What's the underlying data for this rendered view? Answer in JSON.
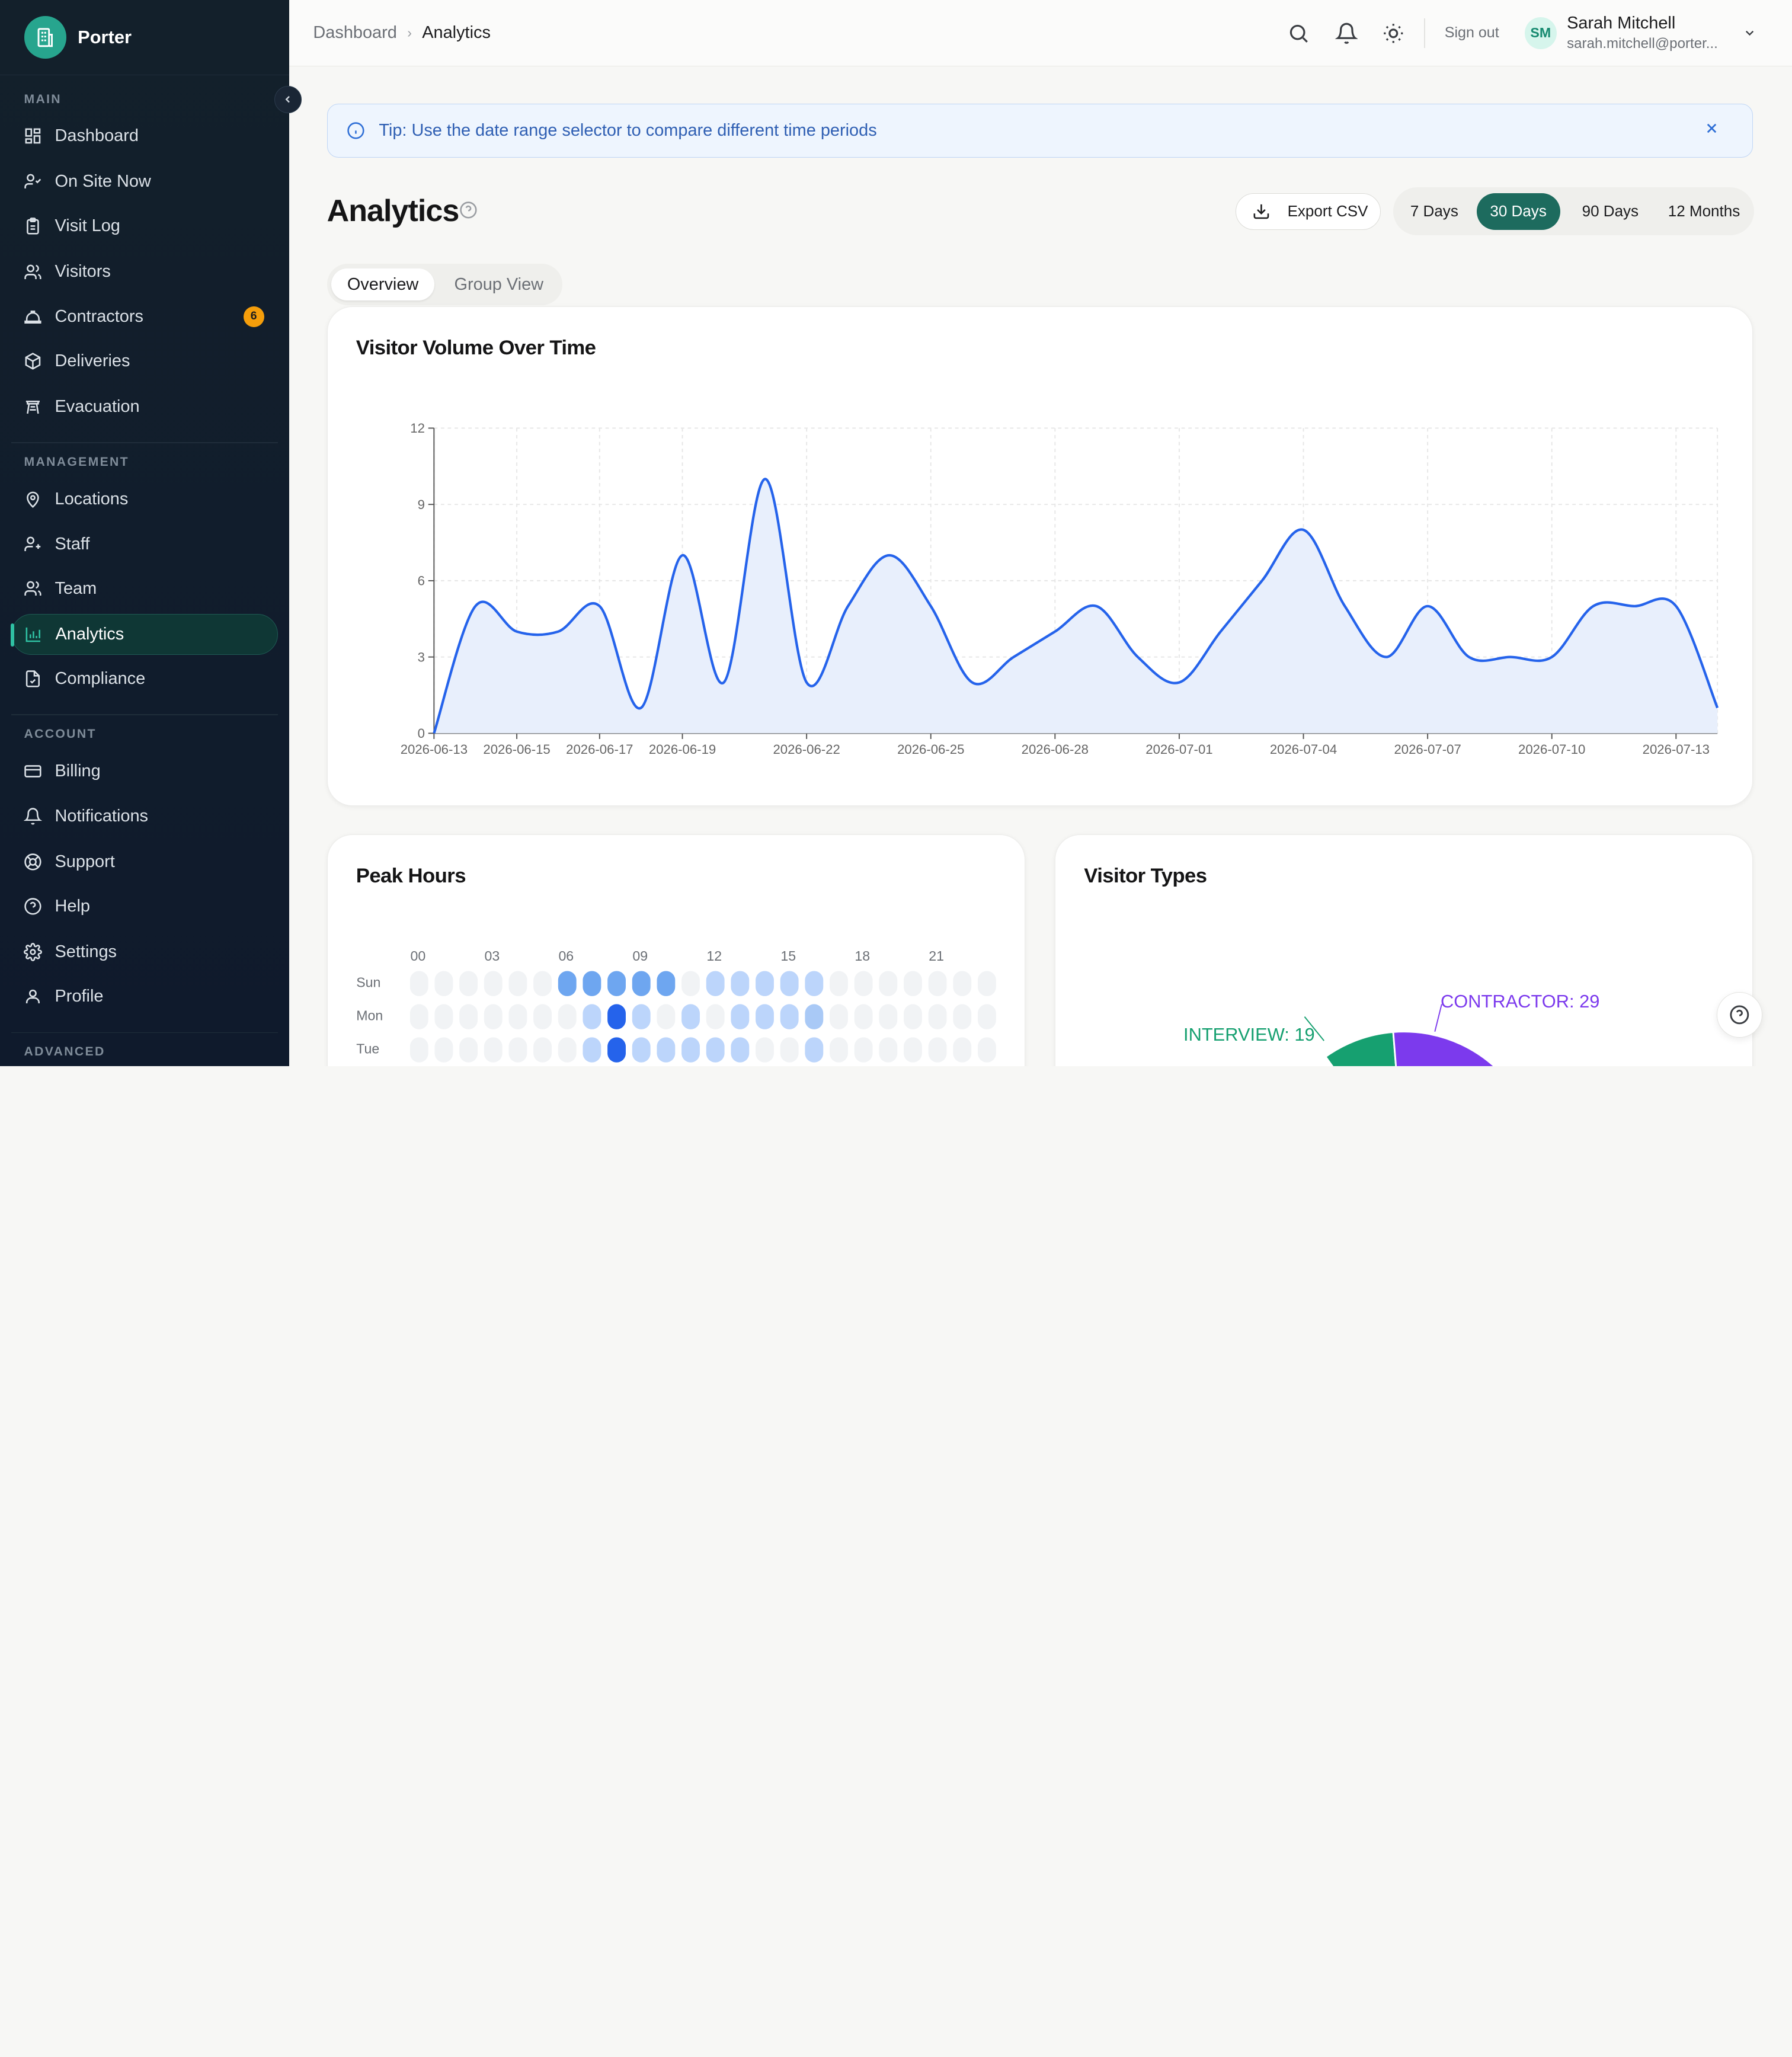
{
  "brand": {
    "name": "Porter"
  },
  "sidebar": {
    "sections": {
      "main": "MAIN",
      "management": "MANAGEMENT",
      "account": "ACCOUNT",
      "advanced": "ADVANCED"
    },
    "main": [
      {
        "label": "Dashboard",
        "icon": "dashboard-icon"
      },
      {
        "label": "On Site Now",
        "icon": "user-check-icon"
      },
      {
        "label": "Visit Log",
        "icon": "clipboard-icon"
      },
      {
        "label": "Visitors",
        "icon": "users-icon"
      },
      {
        "label": "Contractors",
        "icon": "hard-hat-icon",
        "badge": "6"
      },
      {
        "label": "Deliveries",
        "icon": "package-icon"
      },
      {
        "label": "Evacuation",
        "icon": "evacuation-icon"
      }
    ],
    "management": [
      {
        "label": "Locations",
        "icon": "map-pin-icon"
      },
      {
        "label": "Staff",
        "icon": "user-plus-icon"
      },
      {
        "label": "Team",
        "icon": "team-icon"
      },
      {
        "label": "Analytics",
        "icon": "bar-chart-icon",
        "active": true
      },
      {
        "label": "Compliance",
        "icon": "file-check-icon"
      }
    ],
    "account": [
      {
        "label": "Billing",
        "icon": "credit-card-icon"
      },
      {
        "label": "Notifications",
        "icon": "bell-icon"
      },
      {
        "label": "Support",
        "icon": "life-buoy-icon"
      },
      {
        "label": "Help",
        "icon": "help-circle-icon"
      },
      {
        "label": "Settings",
        "icon": "gear-icon"
      },
      {
        "label": "Profile",
        "icon": "user-icon"
      }
    ]
  },
  "topbar": {
    "breadcrumb": [
      "Dashboard",
      "Analytics"
    ],
    "signout": "Sign out",
    "user": {
      "initials": "SM",
      "name": "Sarah Mitchell",
      "email": "sarah.mitchell@porter..."
    }
  },
  "tip": {
    "text": "Tip: Use the date range selector to compare different time periods"
  },
  "page": {
    "title": "Analytics",
    "export_label": "Export CSV",
    "ranges": [
      "7 Days",
      "30 Days",
      "90 Days",
      "12 Months"
    ],
    "selected_range": "30 Days",
    "tabs": [
      "Overview",
      "Group View"
    ],
    "selected_tab": "Overview"
  },
  "cards": {
    "volume": "Visitor Volume Over Time",
    "peak": "Peak Hours",
    "types": "Visitor Types"
  },
  "chart_data": [
    {
      "type": "area",
      "title": "Visitor Volume Over Time",
      "ylim": [
        0,
        12
      ],
      "yticks": [
        0,
        3,
        6,
        9,
        12
      ],
      "xticks": [
        "2026-06-13",
        "2026-06-15",
        "2026-06-17",
        "2026-06-19",
        "2026-06-22",
        "2026-06-25",
        "2026-06-28",
        "2026-07-01",
        "2026-07-04",
        "2026-07-07",
        "2026-07-10",
        "2026-07-13"
      ],
      "x": [
        "2026-06-13",
        "2026-06-14",
        "2026-06-15",
        "2026-06-16",
        "2026-06-17",
        "2026-06-18",
        "2026-06-19",
        "2026-06-20",
        "2026-06-21",
        "2026-06-22",
        "2026-06-23",
        "2026-06-24",
        "2026-06-25",
        "2026-06-26",
        "2026-06-27",
        "2026-06-28",
        "2026-06-29",
        "2026-06-30",
        "2026-07-01",
        "2026-07-02",
        "2026-07-03",
        "2026-07-04",
        "2026-07-05",
        "2026-07-06",
        "2026-07-07",
        "2026-07-08",
        "2026-07-09",
        "2026-07-10",
        "2026-07-11",
        "2026-07-12",
        "2026-07-13",
        "2026-07-14"
      ],
      "values": [
        0,
        5,
        4,
        4,
        5,
        1,
        7,
        2,
        10,
        2,
        5,
        7,
        5,
        2,
        3,
        4,
        5,
        3,
        2,
        4,
        6,
        8,
        5,
        3,
        5,
        3,
        3,
        3,
        5,
        5,
        5,
        1
      ],
      "color": "#2563eb",
      "fill": "#e8effc",
      "grid": true
    },
    {
      "type": "heatmap",
      "title": "Peak Hours",
      "xticks": [
        "00",
        "03",
        "06",
        "09",
        "12",
        "15",
        "18",
        "21"
      ],
      "rows": [
        "Sun",
        "Mon",
        "Tue"
      ],
      "values": [
        [
          0,
          0,
          0,
          0,
          0,
          0,
          3,
          3,
          3,
          3,
          3,
          0,
          2,
          2,
          2,
          2,
          2,
          0,
          0,
          0,
          0,
          0,
          0,
          0
        ],
        [
          0,
          0,
          0,
          0,
          0,
          0,
          0,
          2,
          4,
          2,
          0,
          2,
          0,
          2,
          2,
          2,
          1,
          0,
          0,
          0,
          0,
          0,
          0,
          0
        ],
        [
          0,
          0,
          0,
          0,
          0,
          0,
          0,
          2,
          4,
          2,
          2,
          2,
          2,
          2,
          0,
          0,
          2,
          0,
          0,
          0,
          0,
          0,
          0,
          0
        ]
      ]
    },
    {
      "type": "pie",
      "title": "Visitor Types",
      "labels": [
        "INTERVIEW: 19",
        "CONTRACTOR: 29"
      ],
      "colors": [
        "#16a070",
        "#7c3aed"
      ]
    }
  ]
}
